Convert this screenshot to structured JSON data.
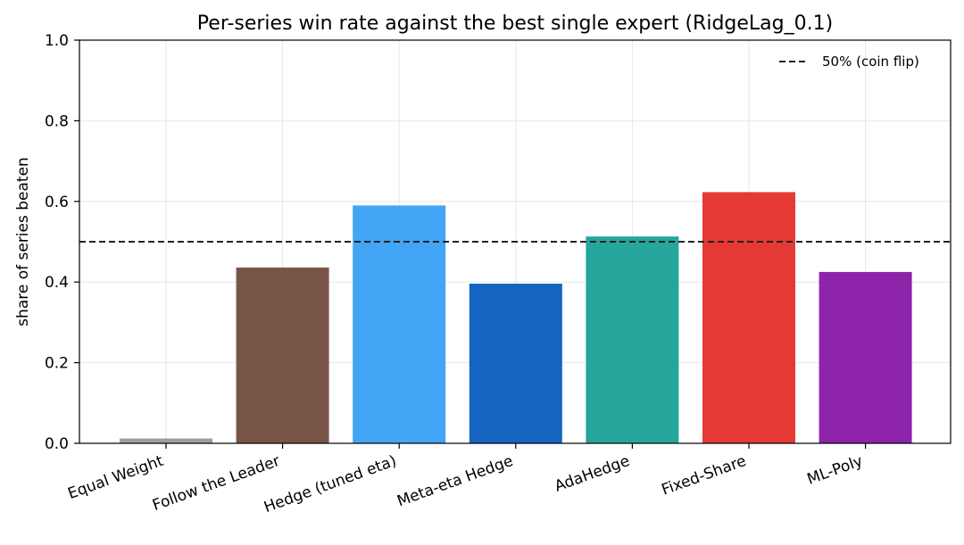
{
  "chart_data": {
    "type": "bar",
    "title": "Per-series win rate against the best single expert (RidgeLag_0.1)",
    "xlabel": "",
    "ylabel": "share of series beaten",
    "ylim": [
      0,
      1.0
    ],
    "yticks": [
      "0.0",
      "0.2",
      "0.4",
      "0.6",
      "0.8",
      "1.0"
    ],
    "grid": true,
    "categories": [
      "Equal Weight",
      "Follow the Leader",
      "Hedge (tuned eta)",
      "Meta-eta Hedge",
      "AdaHedge",
      "Fixed-Share",
      "ML-Poly"
    ],
    "values": [
      0.012,
      0.436,
      0.59,
      0.396,
      0.513,
      0.623,
      0.425
    ],
    "colors": [
      "#9e9e9e",
      "#795548",
      "#42a5f5",
      "#1565c0",
      "#26a69a",
      "#e53935",
      "#8e24aa"
    ],
    "reference_line": {
      "value": 0.5,
      "label": "50% (coin flip)",
      "style": "dashed",
      "color": "#222222"
    },
    "legend_position": "top-right"
  }
}
